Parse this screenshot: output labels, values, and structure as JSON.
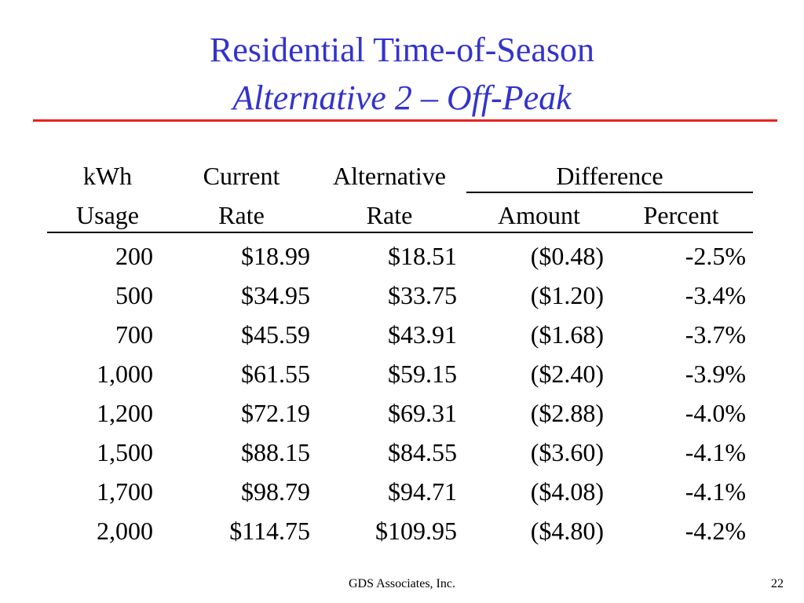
{
  "slide": {
    "title_line1": "Residential Time-of-Season",
    "title_line2": "Alternative 2 – Off-Peak",
    "footer_text": "GDS Associates, Inc.",
    "page_number": "22",
    "title_color": "#3333cc",
    "rule_color": "#e8221f"
  },
  "table": {
    "headers": {
      "kwh_top": "kWh",
      "kwh_bottom": "Usage",
      "current_top": "Current",
      "current_bottom": "Rate",
      "alternative_top": "Alternative",
      "alternative_bottom": "Rate",
      "difference": "Difference",
      "amount": "Amount",
      "percent": "Percent"
    },
    "rows": [
      {
        "kwh": "200",
        "current": "$18.99",
        "alternative": "$18.51",
        "amount": "($0.48)",
        "percent": "-2.5%"
      },
      {
        "kwh": "500",
        "current": "$34.95",
        "alternative": "$33.75",
        "amount": "($1.20)",
        "percent": "-3.4%"
      },
      {
        "kwh": "700",
        "current": "$45.59",
        "alternative": "$43.91",
        "amount": "($1.68)",
        "percent": "-3.7%"
      },
      {
        "kwh": "1,000",
        "current": "$61.55",
        "alternative": "$59.15",
        "amount": "($2.40)",
        "percent": "-3.9%"
      },
      {
        "kwh": "1,200",
        "current": "$72.19",
        "alternative": "$69.31",
        "amount": "($2.88)",
        "percent": "-4.0%"
      },
      {
        "kwh": "1,500",
        "current": "$88.15",
        "alternative": "$84.55",
        "amount": "($3.60)",
        "percent": "-4.1%"
      },
      {
        "kwh": "1,700",
        "current": "$98.79",
        "alternative": "$94.71",
        "amount": "($4.08)",
        "percent": "-4.1%"
      },
      {
        "kwh": "2,000",
        "current": "$114.75",
        "alternative": "$109.95",
        "amount": "($4.80)",
        "percent": "-4.2%"
      }
    ]
  }
}
